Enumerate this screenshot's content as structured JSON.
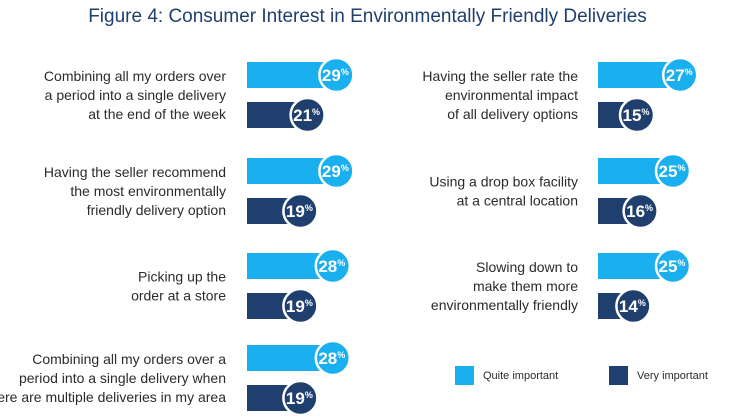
{
  "title": "Figure 4: Consumer Interest in Environmentally Friendly Deliveries",
  "colors": {
    "quite": "#1ab0ef",
    "very": "#1f3f6e",
    "label_text": "#2b2b2b",
    "badge_text": "#ffffff"
  },
  "chart_data": {
    "type": "bar",
    "orientation": "horizontal",
    "title": "Figure 4: Consumer Interest in Environmentally Friendly Deliveries",
    "value_suffix": "%",
    "series_names": [
      "Quite important",
      "Very important"
    ],
    "categories": [
      {
        "label": [
          "Combining all my orders over",
          "a period into a single delivery",
          "at the end of the week"
        ],
        "values": [
          29,
          21
        ]
      },
      {
        "label": [
          "Having the seller recommend",
          "the most environmentally",
          "friendly delivery option"
        ],
        "values": [
          29,
          19
        ]
      },
      {
        "label": [
          "Picking up the",
          "order at a store"
        ],
        "values": [
          28,
          19
        ]
      },
      {
        "label": [
          "Combining all my orders over a",
          "period into a single delivery when",
          "there are multiple deliveries in my area"
        ],
        "values": [
          28,
          19
        ]
      },
      {
        "label": [
          "Having the seller rate the",
          "environmental impact",
          "of all delivery options"
        ],
        "values": [
          27,
          15
        ]
      },
      {
        "label": [
          "Using a drop box facility",
          "at a central location"
        ],
        "values": [
          25,
          16
        ]
      },
      {
        "label": [
          "Slowing down to",
          "make them more",
          "environmentally friendly"
        ],
        "values": [
          25,
          14
        ]
      }
    ],
    "legend": [
      {
        "name": "Quite important",
        "color": "#1ab0ef"
      },
      {
        "name": "Very important",
        "color": "#1f3f6e"
      }
    ],
    "legend_position": "bottom-right"
  }
}
